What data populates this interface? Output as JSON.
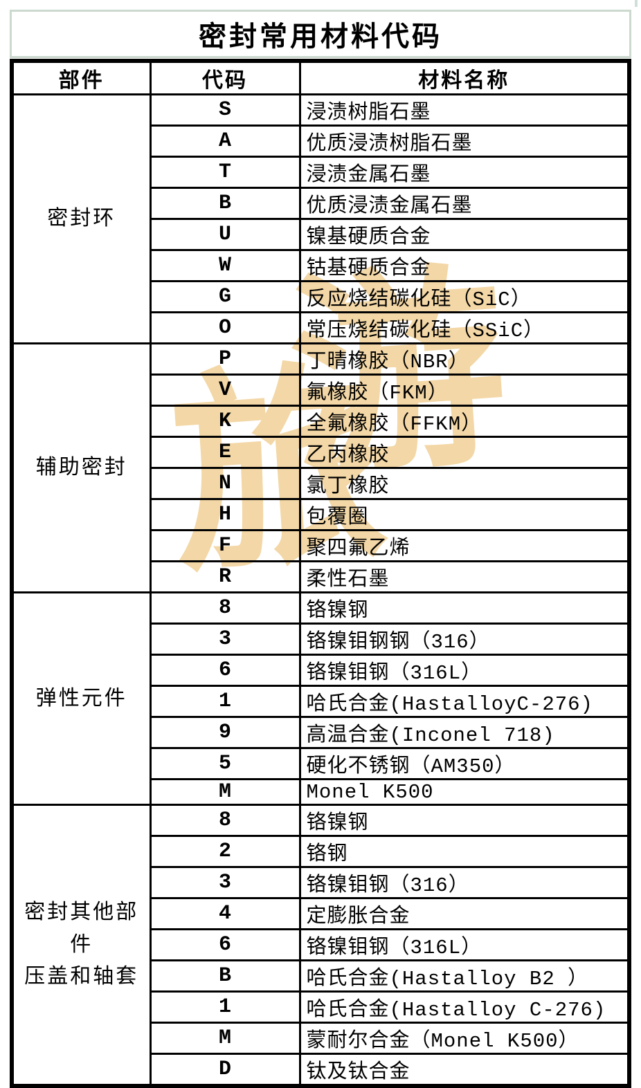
{
  "title": "密封常用材料代码",
  "watermark": {
    "char1": "旅",
    "char2": "游",
    "color": "#f3d7a6"
  },
  "table": {
    "headers": [
      "部件",
      "代码",
      "材料名称"
    ],
    "groups": [
      {
        "component": "密封环",
        "rows": [
          {
            "code": "S",
            "material": "浸渍树脂石墨"
          },
          {
            "code": "A",
            "material": "优质浸渍树脂石墨"
          },
          {
            "code": "T",
            "material": "浸渍金属石墨"
          },
          {
            "code": "B",
            "material": "优质浸渍金属石墨"
          },
          {
            "code": "U",
            "material": "镍基硬质合金"
          },
          {
            "code": "W",
            "material": "钴基硬质合金"
          },
          {
            "code": "G",
            "material": "反应烧结碳化硅（SiC）"
          },
          {
            "code": "O",
            "material": "常压烧结碳化硅（SSiC）"
          }
        ]
      },
      {
        "component": "辅助密封",
        "rows": [
          {
            "code": "P",
            "material": "丁晴橡胶（NBR）"
          },
          {
            "code": "V",
            "material": "氟橡胶（FKM）"
          },
          {
            "code": "K",
            "material": "全氟橡胶（FFKM）"
          },
          {
            "code": "E",
            "material": "乙丙橡胶"
          },
          {
            "code": "N",
            "material": "氯丁橡胶"
          },
          {
            "code": "H",
            "material": "包覆圈"
          },
          {
            "code": "F",
            "material": "聚四氟乙烯"
          },
          {
            "code": "R",
            "material": "柔性石墨"
          }
        ]
      },
      {
        "component": "弹性元件",
        "rows": [
          {
            "code": "8",
            "material": "铬镍钢"
          },
          {
            "code": "3",
            "material": "铬镍钼钢钢（316）"
          },
          {
            "code": "6",
            "material": "铬镍钼钢（316L）"
          },
          {
            "code": "1",
            "material": "哈氏合金(HastalloyC-276)"
          },
          {
            "code": "9",
            "material": "高温合金(Inconel 718)"
          },
          {
            "code": "5",
            "material": "硬化不锈钢（AM350）"
          },
          {
            "code": "M",
            "material": "Monel K500"
          }
        ]
      },
      {
        "component": "密封其他部件\n压盖和轴套",
        "rows": [
          {
            "code": "8",
            "material": "铬镍钢"
          },
          {
            "code": "2",
            "material": "铬钢"
          },
          {
            "code": "3",
            "material": "铬镍钼钢（316）"
          },
          {
            "code": "4",
            "material": "定膨胀合金"
          },
          {
            "code": "6",
            "material": "铬镍钼钢（316L）"
          },
          {
            "code": "B",
            "material": "哈氏合金(Hastalloy B2 ）"
          },
          {
            "code": "1",
            "material": "哈氏合金(Hastalloy C-276)"
          },
          {
            "code": "M",
            "material": "蒙耐尔合金（Monel K500）"
          },
          {
            "code": "D",
            "material": "钛及钛合金"
          }
        ]
      }
    ]
  }
}
